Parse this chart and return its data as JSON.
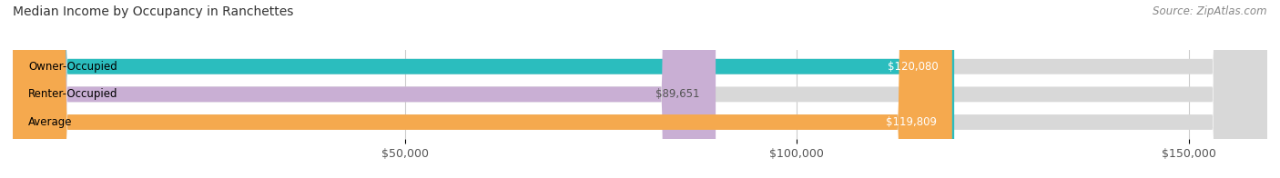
{
  "title": "Median Income by Occupancy in Ranchettes",
  "source": "Source: ZipAtlas.com",
  "categories": [
    "Owner-Occupied",
    "Renter-Occupied",
    "Average"
  ],
  "values": [
    120080,
    89651,
    119809
  ],
  "bar_colors": [
    "#2bbdbe",
    "#c9afd4",
    "#f5a94e"
  ],
  "value_labels": [
    "$120,080",
    "$89,651",
    "$119,809"
  ],
  "label_colors": [
    "white",
    "#555555",
    "white"
  ],
  "xlim": [
    0,
    160000
  ],
  "xticks": [
    50000,
    100000,
    150000
  ],
  "xtick_labels": [
    "$50,000",
    "$100,000",
    "$150,000"
  ],
  "title_fontsize": 10,
  "source_fontsize": 8.5,
  "bar_label_fontsize": 8.5,
  "tick_fontsize": 9,
  "background_color": "#ffffff",
  "bar_height": 0.55,
  "bg_bar_color": "#d8d8d8",
  "rounding_size": 7000
}
